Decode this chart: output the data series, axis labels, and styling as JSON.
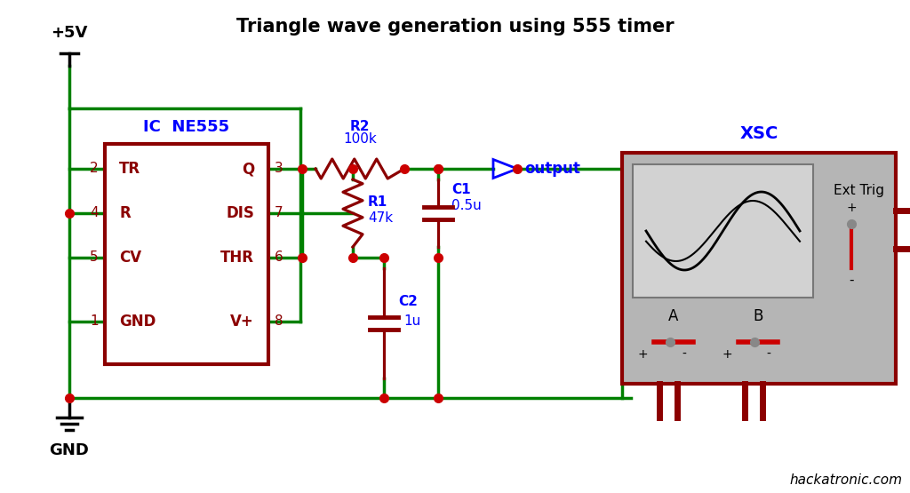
{
  "title": "Triangle wave generation using 555 timer",
  "bg_color": "#ffffff",
  "title_color": "#000000",
  "title_fontsize": 15,
  "green": "#008000",
  "dark_red": "#8B0000",
  "crimson": "#cc0000",
  "blue": "#0000FF",
  "gray_osc": "#b5b5b5",
  "screen_gray": "#d2d2d2",
  "wire_lw": 2.5,
  "dot_size": 7,
  "hackatronic_text": "hackatronic.com",
  "ic_label": "IC  NE555",
  "xsc_label": "XSC",
  "r2_label": "R2",
  "r2_val": "100k",
  "r1_label": "R1",
  "r1_val": "47k",
  "c1_label": "C1",
  "c1_val": "0.5u",
  "c2_label": "C2",
  "c2_val": "1u",
  "output_label": "output",
  "gnd_label": "GND",
  "vcc_label": "+5V",
  "ext_trig_label": "Ext Trig",
  "ic_pins_left": [
    "TR",
    "R",
    "CV",
    "GND"
  ],
  "ic_pins_right": [
    "Q",
    "DIS",
    "THR",
    "V+"
  ],
  "ic_pin_nums_left": [
    "2",
    "4",
    "5",
    "1"
  ],
  "ic_pin_nums_right": [
    "3",
    "7",
    "6",
    "8"
  ]
}
